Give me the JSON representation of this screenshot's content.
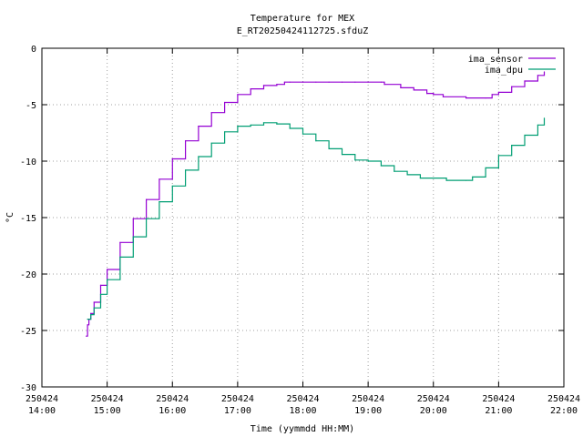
{
  "chart_data": {
    "type": "line",
    "title": "Temperature for MEX",
    "subtitle": "E_RT20250424112725.sfduZ",
    "xlabel": "Time (yymmdd HH:MM)",
    "ylabel": "°C",
    "ylim": [
      -30,
      0
    ],
    "yticks": [
      0,
      -5,
      -10,
      -15,
      -20,
      -25,
      -30
    ],
    "xlim": [
      14.0,
      22.0
    ],
    "xticks": [
      {
        "hour": 14,
        "date": "250424",
        "time": "14:00"
      },
      {
        "hour": 15,
        "date": "250424",
        "time": "15:00"
      },
      {
        "hour": 16,
        "date": "250424",
        "time": "16:00"
      },
      {
        "hour": 17,
        "date": "250424",
        "time": "17:00"
      },
      {
        "hour": 18,
        "date": "250424",
        "time": "18:00"
      },
      {
        "hour": 19,
        "date": "250424",
        "time": "19:00"
      },
      {
        "hour": 20,
        "date": "250424",
        "time": "20:00"
      },
      {
        "hour": 21,
        "date": "250424",
        "time": "21:00"
      },
      {
        "hour": 22,
        "date": "250424",
        "time": "22:00"
      }
    ],
    "grid": true,
    "legend_position": "top-right",
    "series": [
      {
        "name": "ima_sensor",
        "color": "#9400d3",
        "points": [
          [
            14.68,
            -25.5
          ],
          [
            14.7,
            -24.5
          ],
          [
            14.72,
            -24.0
          ],
          [
            14.75,
            -23.5
          ],
          [
            14.8,
            -22.5
          ],
          [
            14.9,
            -21.0
          ],
          [
            15.0,
            -19.6
          ],
          [
            15.2,
            -17.2
          ],
          [
            15.4,
            -15.1
          ],
          [
            15.6,
            -13.4
          ],
          [
            15.8,
            -11.6
          ],
          [
            16.0,
            -9.8
          ],
          [
            16.2,
            -8.2
          ],
          [
            16.4,
            -6.9
          ],
          [
            16.6,
            -5.7
          ],
          [
            16.8,
            -4.8
          ],
          [
            17.0,
            -4.1
          ],
          [
            17.2,
            -3.6
          ],
          [
            17.4,
            -3.3
          ],
          [
            17.6,
            -3.2
          ],
          [
            17.72,
            -3.0
          ],
          [
            17.8,
            -3.0
          ],
          [
            18.0,
            -3.0
          ],
          [
            18.2,
            -3.0
          ],
          [
            18.4,
            -3.0
          ],
          [
            18.6,
            -3.0
          ],
          [
            18.8,
            -3.0
          ],
          [
            19.0,
            -3.0
          ],
          [
            19.2,
            -3.0
          ],
          [
            19.25,
            -3.2
          ],
          [
            19.5,
            -3.5
          ],
          [
            19.7,
            -3.7
          ],
          [
            19.9,
            -4.0
          ],
          [
            20.0,
            -4.1
          ],
          [
            20.15,
            -4.3
          ],
          [
            20.5,
            -4.4
          ],
          [
            20.8,
            -4.4
          ],
          [
            20.9,
            -4.1
          ],
          [
            21.0,
            -3.9
          ],
          [
            21.2,
            -3.4
          ],
          [
            21.4,
            -2.9
          ],
          [
            21.6,
            -2.4
          ],
          [
            21.7,
            -2.1
          ]
        ]
      },
      {
        "name": "ima_dpu",
        "color": "#009e73",
        "points": [
          [
            14.7,
            -24.0
          ],
          [
            14.75,
            -23.6
          ],
          [
            14.8,
            -23.0
          ],
          [
            14.9,
            -21.8
          ],
          [
            15.0,
            -20.5
          ],
          [
            15.2,
            -18.5
          ],
          [
            15.4,
            -16.7
          ],
          [
            15.6,
            -15.1
          ],
          [
            15.8,
            -13.6
          ],
          [
            16.0,
            -12.2
          ],
          [
            16.2,
            -10.8
          ],
          [
            16.4,
            -9.6
          ],
          [
            16.6,
            -8.4
          ],
          [
            16.8,
            -7.4
          ],
          [
            17.0,
            -6.9
          ],
          [
            17.2,
            -6.8
          ],
          [
            17.4,
            -6.6
          ],
          [
            17.6,
            -6.7
          ],
          [
            17.8,
            -7.1
          ],
          [
            18.0,
            -7.6
          ],
          [
            18.2,
            -8.2
          ],
          [
            18.4,
            -8.9
          ],
          [
            18.6,
            -9.4
          ],
          [
            18.8,
            -9.9
          ],
          [
            19.0,
            -10.0
          ],
          [
            19.2,
            -10.4
          ],
          [
            19.4,
            -10.9
          ],
          [
            19.6,
            -11.2
          ],
          [
            19.8,
            -11.5
          ],
          [
            20.0,
            -11.5
          ],
          [
            20.2,
            -11.7
          ],
          [
            20.5,
            -11.7
          ],
          [
            20.6,
            -11.4
          ],
          [
            20.8,
            -10.6
          ],
          [
            21.0,
            -9.5
          ],
          [
            21.2,
            -8.6
          ],
          [
            21.4,
            -7.7
          ],
          [
            21.6,
            -6.8
          ],
          [
            21.7,
            -6.2
          ]
        ]
      }
    ]
  }
}
